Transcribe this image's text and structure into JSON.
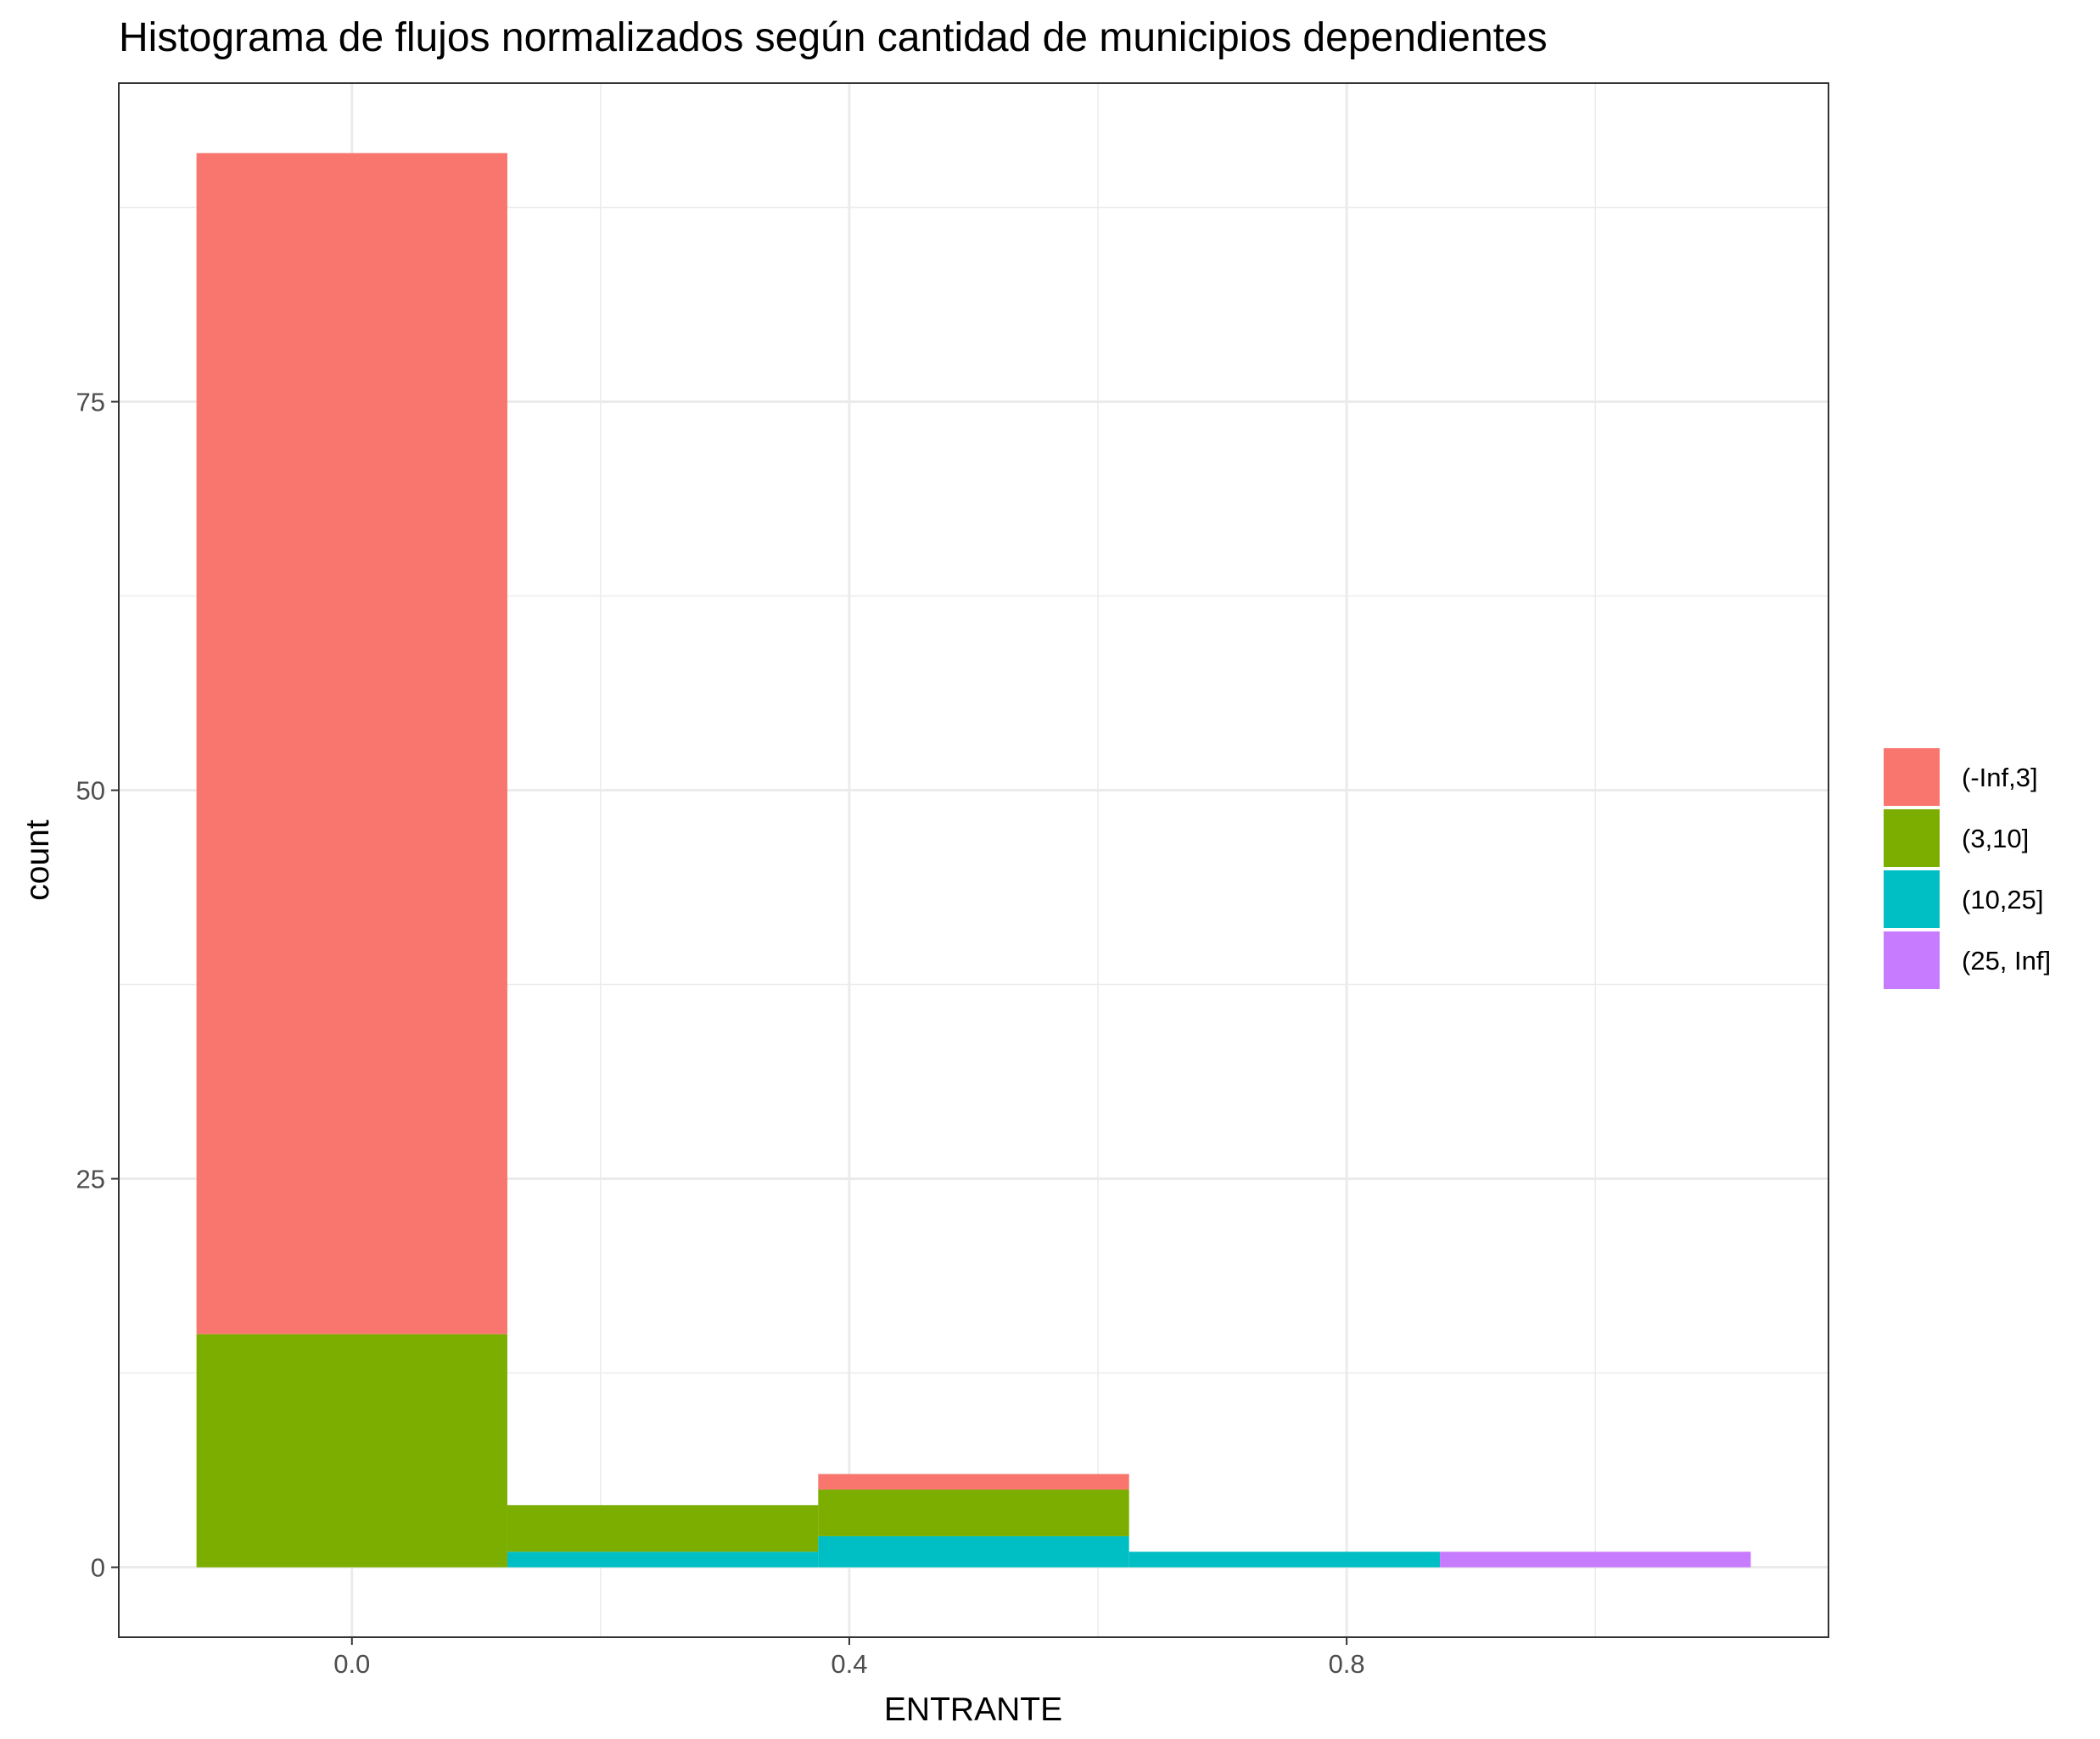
{
  "chart_data": {
    "type": "bar",
    "title": "Histograma de flujos normalizados según cantidad de municipios dependientes",
    "xlabel": "ENTRANTE",
    "ylabel": "count",
    "x_ticks": [
      0.0,
      0.4,
      0.8
    ],
    "x_tick_labels": [
      "0.0",
      "0.4",
      "0.8"
    ],
    "y_ticks": [
      0,
      25,
      50,
      75
    ],
    "y_tick_labels": [
      "0",
      "25",
      "50",
      "75"
    ],
    "xlim": [
      -0.1875,
      1.1875
    ],
    "ylim": [
      -4.5,
      95.5
    ],
    "stacked": true,
    "bins": [
      {
        "center": 0.0,
        "width": 0.25
      },
      {
        "center": 0.25,
        "width": 0.25
      },
      {
        "center": 0.5,
        "width": 0.25
      },
      {
        "center": 0.75,
        "width": 0.25
      },
      {
        "center": 1.0,
        "width": 0.25
      }
    ],
    "series": [
      {
        "name": "(-Inf,3]",
        "color": "#F8766D",
        "values": [
          76,
          0,
          1,
          0,
          0
        ]
      },
      {
        "name": "(3,10]",
        "color": "#7CAE00",
        "values": [
          15,
          3,
          3,
          0,
          0
        ]
      },
      {
        "name": "(10,25]",
        "color": "#00BFC4",
        "values": [
          0,
          1,
          2,
          1,
          0
        ]
      },
      {
        "name": "(25, Inf]",
        "color": "#C77CFF",
        "values": [
          0,
          0,
          0,
          0,
          1
        ]
      }
    ],
    "legend_position": "right",
    "grid": true,
    "panel_border": true
  }
}
